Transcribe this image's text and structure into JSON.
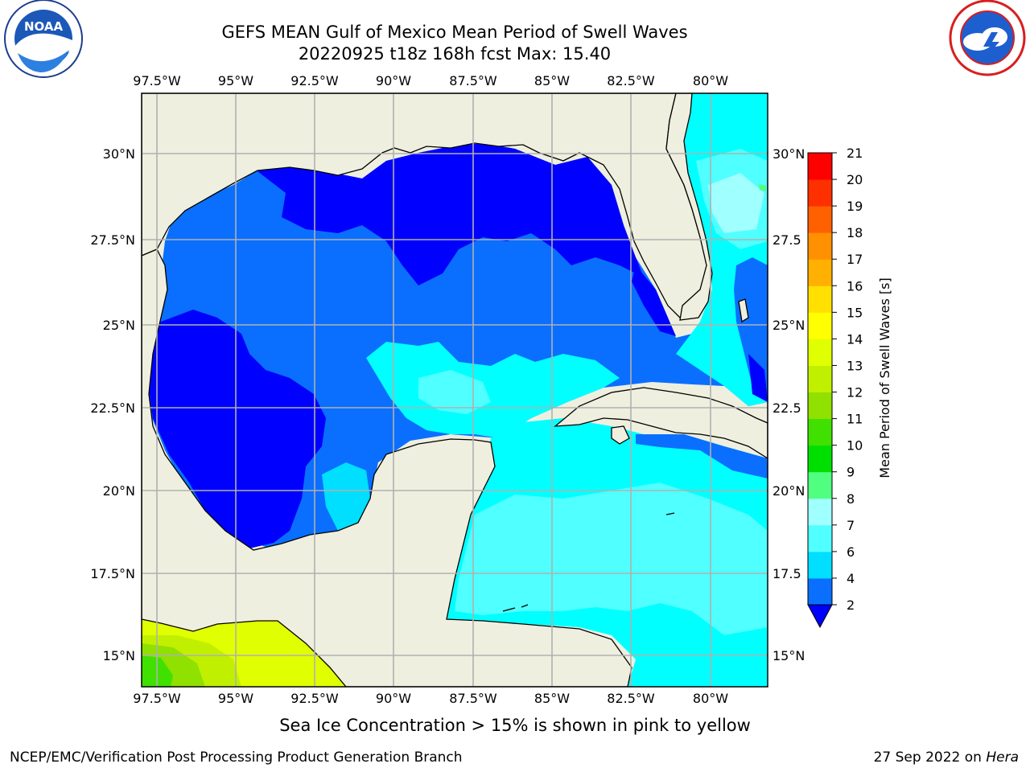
{
  "header": {
    "title_line1": "GEFS MEAN Gulf of Mexico Mean Period of Swell Waves",
    "title_line2": "20220925 t18z 168h fcst   Max: 15.40"
  },
  "logos": {
    "left": "NOAA",
    "left_ring_text": "NATIONAL OCEANIC AND ATMOSPHERIC ADMINISTRATION · U.S. DEPARTMENT OF COMMERCE",
    "right_ring_text": "NATIONAL WEATHER SERVICE"
  },
  "map": {
    "lon_labels": [
      "97.5°W",
      "95°W",
      "92.5°W",
      "90°W",
      "87.5°W",
      "85°W",
      "82.5°W",
      "80°W"
    ],
    "lat_labels_left": [
      "30°N",
      "27.5°N",
      "25°N",
      "22.5°N",
      "20°N",
      "17.5°N",
      "15°N"
    ],
    "lat_labels_right": [
      "30°N",
      "27.5",
      "25°N",
      "22.5",
      "20°N",
      "17.5",
      "15°N"
    ],
    "extent": {
      "lon_min": -98.1,
      "lon_max": -78.2,
      "lat_min": 14.0,
      "lat_max": 31.8
    },
    "land_color": "#efefdf",
    "grid_color": "#b0b0b0"
  },
  "colorbar": {
    "label": "Mean Period of Swell Waves [s]",
    "tick_labels": [
      "2",
      "4",
      "6",
      "7",
      "8",
      "9",
      "10",
      "11",
      "12",
      "13",
      "14",
      "15",
      "16",
      "17",
      "18",
      "19",
      "20",
      "21"
    ],
    "colors": [
      "#0a6fff",
      "#00dfff",
      "#50ffff",
      "#a0ffff",
      "#50ff80",
      "#00e000",
      "#40e000",
      "#90e000",
      "#c0f000",
      "#e0ff00",
      "#ffff00",
      "#ffe000",
      "#ffb000",
      "#ff9000",
      "#ff6000",
      "#ff3000",
      "#ff0000"
    ],
    "extend_color": "#0000ff"
  },
  "footer": {
    "caption": "Sea Ice Concentration > 15% is shown in pink to yellow",
    "credit": "NCEP/EMC/Verification Post Processing Product Generation Branch",
    "date": "27 Sep 2022 on",
    "host": "Hera"
  }
}
